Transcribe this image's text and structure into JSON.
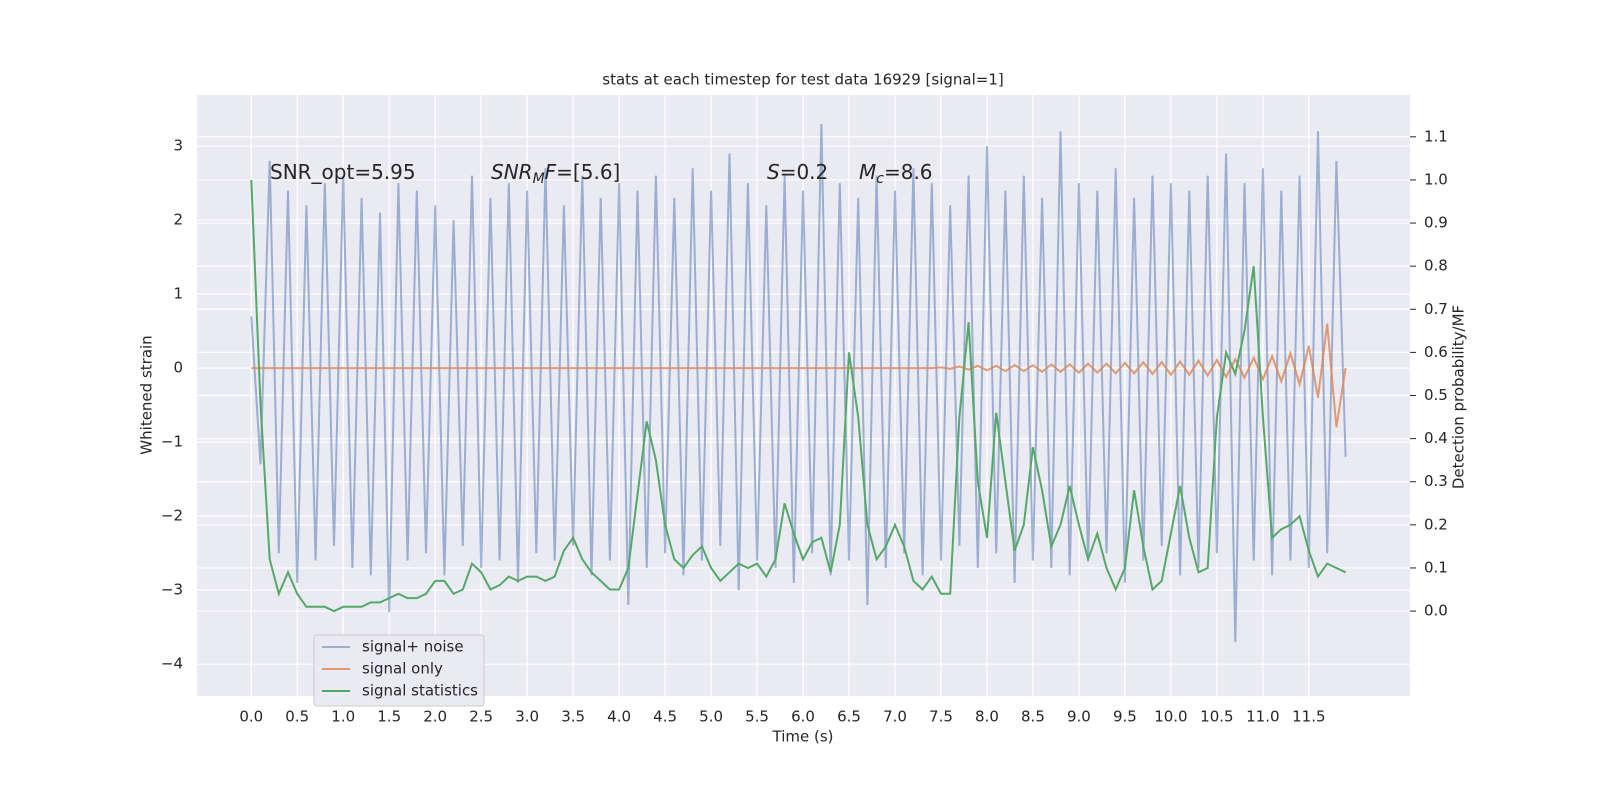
{
  "chart_data": {
    "type": "line",
    "title": "stats at each timestep for test data 16929 [signal=1]",
    "x_label": "Time (s)",
    "y_label": "Whitened strain",
    "y2_label": "Detection probability/MF",
    "annotations": [
      {
        "parts": [
          {
            "text": "SNR_opt=5.95",
            "style": "normal"
          }
        ]
      },
      {
        "parts": [
          {
            "text": "SNR",
            "style": "italic"
          },
          {
            "text": "M",
            "style": "sub"
          },
          {
            "text": "F",
            "style": "italic"
          },
          {
            "text": "=[5.6]",
            "style": "normal"
          }
        ]
      },
      {
        "parts": [
          {
            "text": "S",
            "style": "italic"
          },
          {
            "text": "=0.2",
            "style": "normal"
          }
        ]
      },
      {
        "parts": [
          {
            "text": "M",
            "style": "italic"
          },
          {
            "text": "c",
            "style": "sub"
          },
          {
            "text": "=8.6",
            "style": "normal"
          }
        ]
      }
    ],
    "x": [
      0,
      0.1,
      0.2,
      0.3,
      0.4,
      0.5,
      0.6,
      0.7,
      0.8,
      0.9,
      1,
      1.1,
      1.2,
      1.3,
      1.4,
      1.5,
      1.6,
      1.7,
      1.8,
      1.9,
      2,
      2.1,
      2.2,
      2.3,
      2.4,
      2.5,
      2.6,
      2.7,
      2.8,
      2.9,
      3,
      3.1,
      3.2,
      3.3,
      3.4,
      3.5,
      3.6,
      3.7,
      3.8,
      3.9,
      4,
      4.1,
      4.2,
      4.3,
      4.4,
      4.5,
      4.6,
      4.7,
      4.8,
      4.9,
      5,
      5.1,
      5.2,
      5.3,
      5.4,
      5.5,
      5.6,
      5.7,
      5.8,
      5.9,
      6,
      6.1,
      6.2,
      6.3,
      6.4,
      6.5,
      6.6,
      6.7,
      6.8,
      6.9,
      7,
      7.1,
      7.2,
      7.3,
      7.4,
      7.5,
      7.6,
      7.7,
      7.8,
      7.9,
      8,
      8.1,
      8.2,
      8.3,
      8.4,
      8.5,
      8.6,
      8.7,
      8.8,
      8.9,
      9,
      9.1,
      9.2,
      9.3,
      9.4,
      9.5,
      9.6,
      9.7,
      9.8,
      9.9,
      10,
      10.1,
      10.2,
      10.3,
      10.4,
      10.5,
      10.6,
      10.7,
      10.8,
      10.9,
      11,
      11.1,
      11.2,
      11.3,
      11.4,
      11.5,
      11.6,
      11.7,
      11.8,
      11.9
    ],
    "series": [
      {
        "name": "signal+ noise",
        "color": "#4c72b0",
        "alpha": 0.5,
        "axis": "y",
        "values": [
          0.7,
          -1.3,
          2.8,
          -2.5,
          2.4,
          -2.9,
          2.2,
          -2.6,
          2.5,
          -2.4,
          2.6,
          -2.7,
          2.3,
          -2.8,
          2.1,
          -3.3,
          2.5,
          -2.6,
          2.4,
          -2.5,
          2.2,
          -2.8,
          2.0,
          -2.4,
          2.6,
          -2.7,
          2.3,
          -2.6,
          2.5,
          -2.9,
          2.4,
          -2.5,
          2.7,
          -2.6,
          2.2,
          -2.4,
          2.6,
          -2.8,
          2.3,
          -2.6,
          2.5,
          -3.2,
          2.4,
          -2.7,
          2.6,
          -2.5,
          2.3,
          -2.8,
          2.7,
          -2.6,
          2.4,
          -2.4,
          2.9,
          -3.0,
          2.5,
          -2.6,
          2.2,
          -2.7,
          2.6,
          -2.9,
          2.4,
          -2.5,
          3.3,
          -2.8,
          2.5,
          -2.6,
          2.3,
          -3.2,
          2.6,
          -2.7,
          2.4,
          -2.5,
          2.7,
          -2.8,
          2.5,
          -2.6,
          2.2,
          -2.4,
          2.6,
          -2.7,
          3.0,
          -2.5,
          2.4,
          -2.9,
          2.6,
          -2.6,
          2.3,
          -2.7,
          3.2,
          -2.8,
          2.5,
          -2.6,
          2.4,
          -2.5,
          2.7,
          -2.9,
          2.3,
          -2.6,
          2.6,
          -2.4,
          2.5,
          -2.8,
          2.4,
          -2.7,
          2.6,
          -2.5,
          2.9,
          -3.7,
          2.5,
          -2.6,
          2.7,
          -2.8,
          2.4,
          -2.6,
          2.6,
          -2.7,
          3.2,
          -2.5,
          2.8,
          -1.2
        ]
      },
      {
        "name": "signal only",
        "color": "#dd8452",
        "alpha": 0.8,
        "axis": "y",
        "values": [
          0,
          0,
          0,
          0,
          0,
          0,
          0,
          0,
          0,
          0,
          0,
          0,
          0,
          0,
          0,
          0,
          0,
          0,
          0,
          0,
          0,
          0,
          0,
          0,
          0,
          0,
          0,
          0,
          0,
          0,
          0,
          0,
          0,
          0,
          0,
          0,
          0,
          0,
          0,
          0,
          0,
          0,
          0,
          0,
          0,
          0,
          0,
          0,
          0,
          0,
          0,
          0,
          0,
          0,
          0,
          0,
          0,
          0,
          0,
          0,
          0,
          0,
          0,
          0,
          0,
          0,
          0,
          0,
          0,
          0,
          0,
          0,
          0,
          0,
          0,
          0.01,
          -0.01,
          0.02,
          -0.02,
          0.03,
          -0.03,
          0.03,
          -0.04,
          0.04,
          -0.04,
          0.04,
          -0.05,
          0.05,
          -0.05,
          0.05,
          -0.06,
          0.06,
          -0.06,
          0.06,
          -0.07,
          0.07,
          -0.07,
          0.08,
          -0.08,
          0.08,
          -0.09,
          0.09,
          -0.09,
          0.1,
          -0.1,
          0.11,
          -0.12,
          0.12,
          -0.13,
          0.14,
          -0.15,
          0.16,
          -0.18,
          0.2,
          -0.22,
          0.3,
          -0.4,
          0.6,
          -0.8,
          0
        ]
      },
      {
        "name": "signal statistics",
        "color": "#55a868",
        "alpha": 1,
        "axis": "y2",
        "values": [
          1.0,
          0.48,
          0.12,
          0.04,
          0.09,
          0.04,
          0.01,
          0.01,
          0.01,
          0.0,
          0.01,
          0.01,
          0.01,
          0.02,
          0.02,
          0.03,
          0.04,
          0.03,
          0.03,
          0.04,
          0.07,
          0.07,
          0.04,
          0.05,
          0.11,
          0.09,
          0.05,
          0.06,
          0.08,
          0.07,
          0.08,
          0.08,
          0.07,
          0.08,
          0.14,
          0.17,
          0.12,
          0.09,
          0.07,
          0.05,
          0.05,
          0.1,
          0.27,
          0.44,
          0.35,
          0.2,
          0.12,
          0.1,
          0.13,
          0.15,
          0.1,
          0.07,
          0.09,
          0.11,
          0.1,
          0.11,
          0.08,
          0.12,
          0.25,
          0.18,
          0.12,
          0.16,
          0.17,
          0.09,
          0.2,
          0.6,
          0.45,
          0.2,
          0.12,
          0.15,
          0.2,
          0.15,
          0.07,
          0.05,
          0.08,
          0.04,
          0.04,
          0.45,
          0.67,
          0.3,
          0.17,
          0.46,
          0.3,
          0.14,
          0.2,
          0.38,
          0.28,
          0.15,
          0.2,
          0.29,
          0.2,
          0.12,
          0.18,
          0.1,
          0.05,
          0.1,
          0.28,
          0.15,
          0.05,
          0.07,
          0.18,
          0.29,
          0.17,
          0.09,
          0.1,
          0.45,
          0.6,
          0.55,
          0.65,
          0.8,
          0.45,
          0.17,
          0.19,
          0.2,
          0.22,
          0.14,
          0.08,
          0.11,
          0.1,
          0.09
        ]
      }
    ],
    "xlim": [
      -0.59,
      12.6
    ],
    "ylim": [
      -4.43,
      3.69
    ],
    "y2lim": [
      -0.197,
      1.197
    ],
    "xticks": [
      {
        "value": 0,
        "label": "0.0"
      },
      0.5,
      {
        "value": 1,
        "label": "1.0"
      },
      1.5,
      {
        "value": 2,
        "label": "2.0"
      },
      2.5,
      {
        "value": 3,
        "label": "3.0"
      },
      3.5,
      {
        "value": 4,
        "label": "4.0"
      },
      4.5,
      {
        "value": 5,
        "label": "5.0"
      },
      5.5,
      {
        "value": 6,
        "label": "6.0"
      },
      6.5,
      {
        "value": 7,
        "label": "7.0"
      },
      7.5,
      {
        "value": 8,
        "label": "8.0"
      },
      8.5,
      {
        "value": 9,
        "label": "9.0"
      },
      9.5,
      {
        "value": 10,
        "label": "10.0"
      },
      10.5,
      {
        "value": 11,
        "label": "11.0"
      },
      11.5
    ],
    "yticks": [
      {
        "value": -4,
        "label": "−4"
      },
      {
        "value": -3,
        "label": "−3"
      },
      {
        "value": -2,
        "label": "−2"
      },
      {
        "value": -1,
        "label": "−1"
      },
      0,
      1,
      2,
      3
    ],
    "y2ticks": [
      {
        "value": 0,
        "label": "0.0"
      },
      0.1,
      0.2,
      0.3,
      0.4,
      0.5,
      0.6,
      0.7,
      0.8,
      0.9,
      {
        "value": 1,
        "label": "1.0"
      },
      1.1
    ],
    "grid": true,
    "legend": "lower left"
  }
}
